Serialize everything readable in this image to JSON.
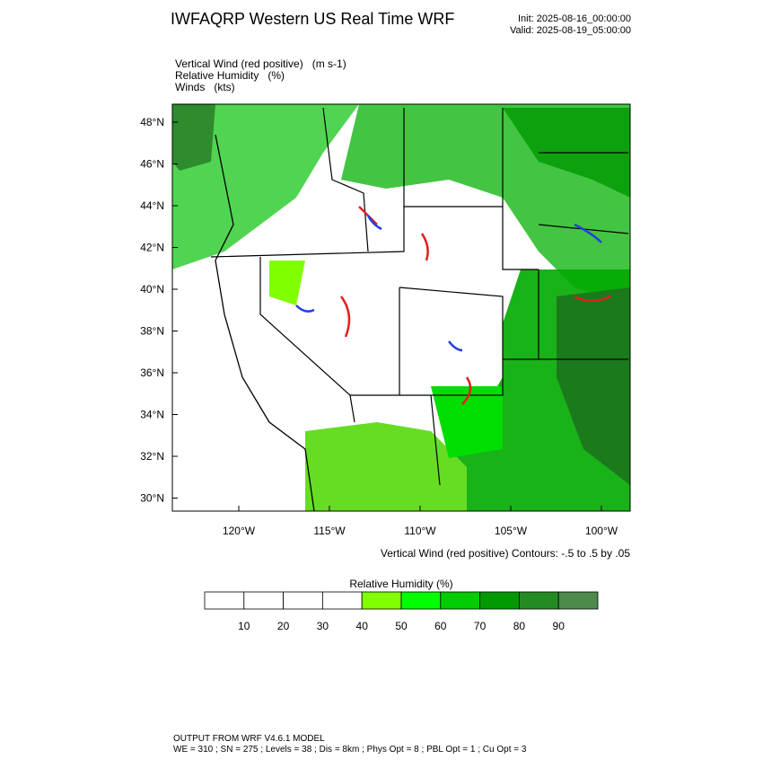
{
  "header": {
    "title": "IWFAQRP Western US Real Time WRF",
    "init": "Init: 2025-08-16_00:00:00",
    "valid": "Valid: 2025-08-19_05:00:00"
  },
  "fields": [
    "Vertical Wind (red positive)   (m s-1)",
    "Relative Humidity   (%)",
    "Winds   (kts)"
  ],
  "map": {
    "lat_labels": [
      "48°N",
      "46°N",
      "44°N",
      "42°N",
      "40°N",
      "38°N",
      "36°N",
      "34°N",
      "32°N",
      "30°N"
    ],
    "lon_labels": [
      "120°W",
      "115°W",
      "110°W",
      "105°W",
      "100°W"
    ],
    "contour_note": "Vertical Wind (red positive) Contours: -.5 to .5 by .05"
  },
  "colorbar": {
    "title": "Relative Humidity  (%)",
    "labels": [
      10,
      20,
      30,
      40,
      50,
      60,
      70,
      80,
      90
    ],
    "colors": [
      "#ffffff",
      "#ffffff",
      "#ffffff",
      "#ffffff",
      "#80ff00",
      "#00ff00",
      "#00cc00",
      "#009900",
      "#228b22",
      "#4d8b4d"
    ]
  },
  "footer": [
    "OUTPUT FROM WRF V4.6.1 MODEL",
    "WE = 310 ; SN = 275 ; Levels = 38 ; Dis = 8km ; Phys Opt = 8 ; PBL Opt = 1 ; Cu Opt = 3"
  ]
}
